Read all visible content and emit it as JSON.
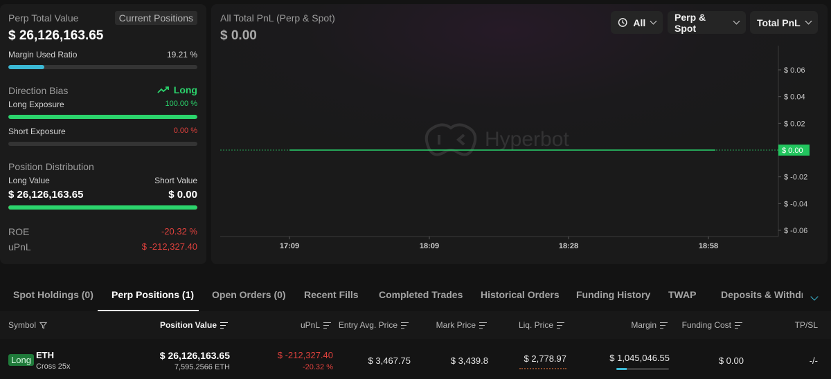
{
  "summary": {
    "perp_total_value_label": "Perp Total Value",
    "current_positions_label": "Current Positions",
    "perp_total_value": "$ 26,126,163.65",
    "margin_used_ratio_label": "Margin Used Ratio",
    "margin_used_ratio": "19.21 %",
    "margin_used_fraction": 0.1921,
    "direction_bias_label": "Direction Bias",
    "direction_bias_value": "Long",
    "long_exposure_label": "Long Exposure",
    "long_exposure": "100.00 %",
    "long_exposure_fraction": 1.0,
    "short_exposure_label": "Short Exposure",
    "short_exposure": "0.00 %",
    "short_exposure_fraction": 0.0,
    "position_distribution_label": "Position Distribution",
    "long_value_label": "Long Value",
    "short_value_label": "Short Value",
    "long_value": "$ 26,126,163.65",
    "short_value": "$ 0.00",
    "distribution_long_fraction": 1.0,
    "roe_label": "ROE",
    "roe": "-20.32 %",
    "upnl_label": "uPnL",
    "upnl": "$ -212,327.40"
  },
  "chart_panel": {
    "title": "All Total PnL (Perp & Spot)",
    "value": "$ 0.00",
    "watermark": "Hyperbot",
    "time_filter": "All",
    "market_filter": "Perp & Spot",
    "metric_filter": "Total PnL"
  },
  "chart_data": {
    "type": "line",
    "x_ticks": [
      "17:09",
      "18:09",
      "18:28",
      "18:58"
    ],
    "y_ticks": [
      "$ 0.06",
      "$ 0.04",
      "$ 0.02",
      "$ 0.00",
      "$ -0.02",
      "$ -0.04",
      "$ -0.06"
    ],
    "ylim": [
      -0.06,
      0.06
    ],
    "current_value_label": "$ 0.00",
    "baseline": 0,
    "series": [
      {
        "values": [
          0,
          0,
          0,
          0
        ]
      }
    ],
    "colors": {
      "line": "#2bd46c",
      "label_bg": "#22c55e"
    }
  },
  "tabs": [
    {
      "label": "Spot Holdings (0)",
      "active": false
    },
    {
      "label": "Perp Positions (1)",
      "active": true
    },
    {
      "label": "Open Orders (0)",
      "active": false
    },
    {
      "label": "Recent Fills",
      "active": false
    },
    {
      "label": "Completed Trades",
      "active": false
    },
    {
      "label": "Historical Orders",
      "active": false
    },
    {
      "label": "Funding History",
      "active": false
    },
    {
      "label": "TWAP",
      "active": false
    },
    {
      "label": "Deposits & Withdraw",
      "active": false
    }
  ],
  "table": {
    "headers": {
      "symbol": "Symbol",
      "position_value": "Position Value",
      "upnl": "uPnL",
      "entry_avg_price": "Entry Avg. Price",
      "mark_price": "Mark Price",
      "liq_price": "Liq. Price",
      "margin": "Margin",
      "funding_cost": "Funding Cost",
      "tpsl": "TP/SL"
    },
    "rows": [
      {
        "side": "Long",
        "coin": "ETH",
        "leverage": "Cross 25x",
        "position_value": "$ 26,126,163.65",
        "position_size": "7,595.2566 ETH",
        "upnl": "$ -212,327.40",
        "upnl_pct": "-20.32 %",
        "entry_avg_price": "$ 3,467.75",
        "mark_price": "$ 3,439.8",
        "liq_price": "$ 2,778.97",
        "margin": "$ 1,045,046.55",
        "margin_usage_fraction": 0.1921,
        "funding_cost": "$ 0.00",
        "tpsl": "-/-"
      }
    ]
  },
  "colors": {
    "green": "#2bd46c",
    "red": "#e0413d",
    "blue_bar": "#3bb8d4",
    "long_badge_bg": "#1f7a3a"
  }
}
